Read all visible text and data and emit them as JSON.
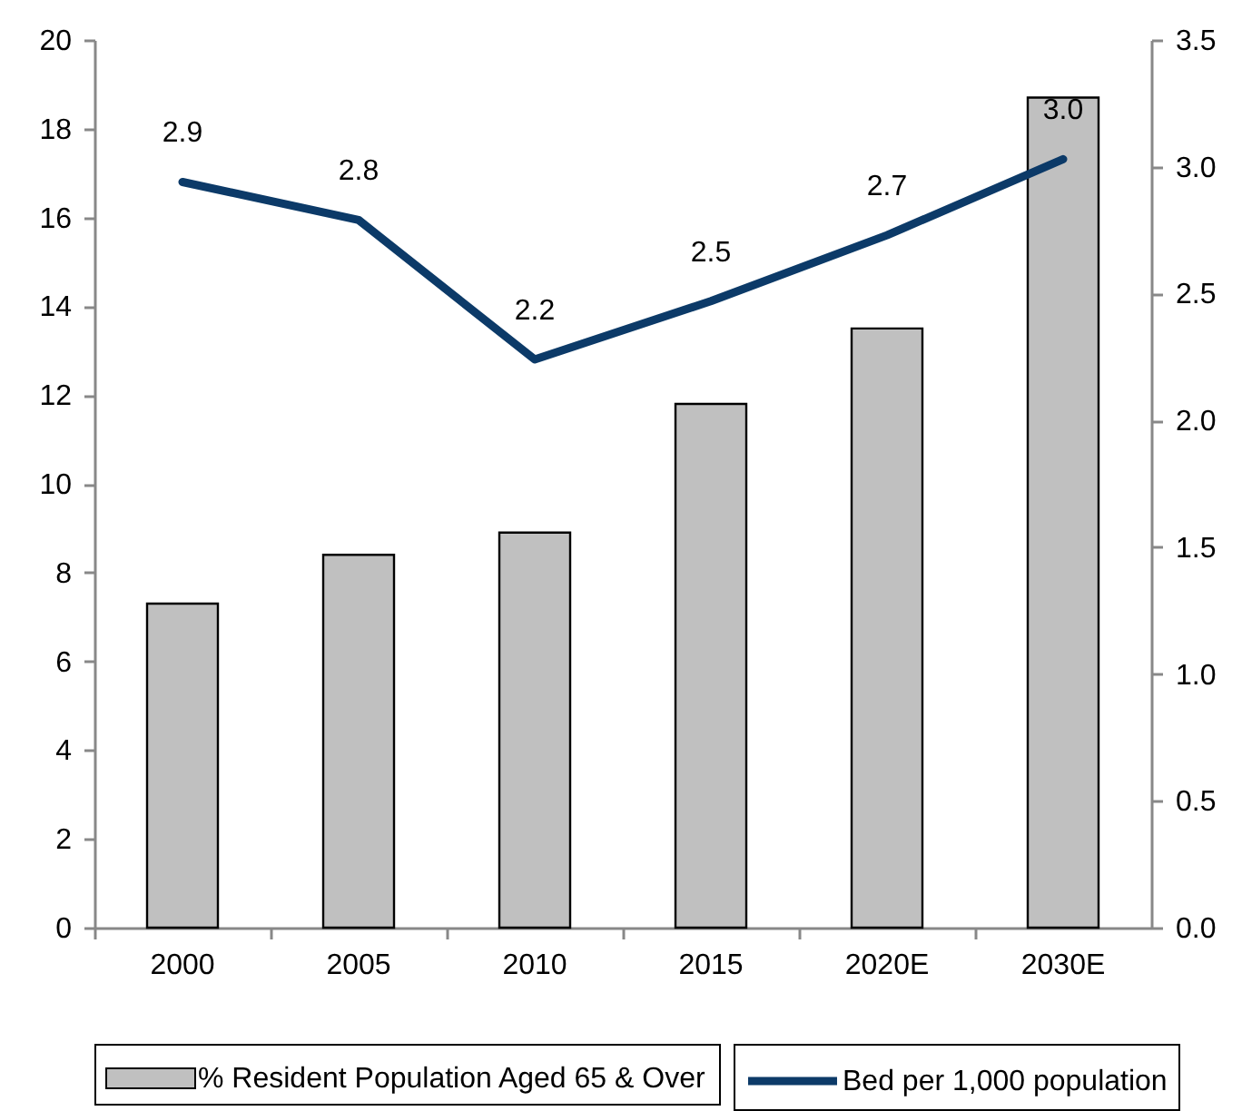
{
  "chart_data": {
    "type": "bar",
    "categories": [
      "2000",
      "2005",
      "2010",
      "2015",
      "2020E",
      "2030E"
    ],
    "series": [
      {
        "name": "% Resident Population Aged 65 & Over",
        "color": "#c0c0c0",
        "values": [
          7.3,
          8.4,
          8.9,
          11.8,
          13.5,
          18.7
        ]
      },
      {
        "name": "Bed per 1,000 population",
        "type": "line",
        "axis": "y2",
        "color": "#0c3a68",
        "values": [
          2.94,
          2.79,
          2.24,
          2.47,
          2.73,
          3.03
        ],
        "value_labels": [
          "2.9",
          "2.8",
          "2.2",
          "2.5",
          "2.7",
          "3.0"
        ]
      }
    ],
    "ylim": [
      0,
      20
    ],
    "yticks": [
      0,
      2,
      4,
      6,
      8,
      10,
      12,
      14,
      16,
      18,
      20
    ],
    "y2lim": [
      0,
      3.5
    ],
    "y2ticks": [
      {
        "value": 0,
        "label": "0.0"
      },
      {
        "value": 0.5,
        "label": "0.5"
      },
      {
        "value": 1,
        "label": "1.0"
      },
      {
        "value": 1.5,
        "label": "1.5"
      },
      {
        "value": 2,
        "label": "2.0"
      },
      {
        "value": 2.5,
        "label": "2.5"
      },
      {
        "value": 3,
        "label": "3.0"
      },
      {
        "value": 3.5,
        "label": "3.5"
      }
    ],
    "grid": false,
    "legend": "bottom",
    "line_style": "solid"
  }
}
